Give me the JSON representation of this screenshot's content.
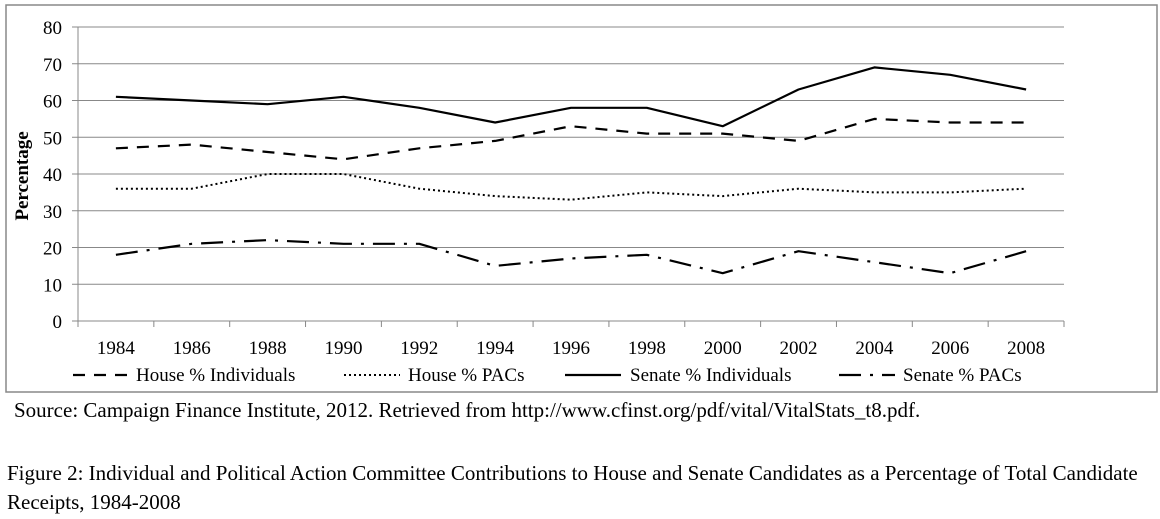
{
  "chart_data": {
    "type": "line",
    "title": "",
    "xlabel": "",
    "ylabel": "Percentage",
    "x": [
      "1984",
      "1986",
      "1988",
      "1990",
      "1992",
      "1994",
      "1996",
      "1998",
      "2000",
      "2002",
      "2004",
      "2006",
      "2008"
    ],
    "ylim": [
      0,
      80
    ],
    "yticks": [
      0,
      10,
      20,
      30,
      40,
      50,
      60,
      70,
      80
    ],
    "grid": true,
    "legend": "bottom",
    "series": [
      {
        "name": "House % Individuals",
        "style": "dashed",
        "color": "#000000",
        "values": [
          47,
          48,
          46,
          44,
          47,
          49,
          53,
          51,
          51,
          49,
          55,
          54,
          54
        ]
      },
      {
        "name": "House % PACs",
        "style": "dotted",
        "color": "#000000",
        "values": [
          36,
          36,
          40,
          40,
          36,
          34,
          33,
          35,
          34,
          36,
          35,
          35,
          36
        ]
      },
      {
        "name": "Senate % Individuals",
        "style": "solid",
        "color": "#000000",
        "values": [
          61,
          60,
          59,
          61,
          58,
          54,
          58,
          58,
          53,
          63,
          69,
          67,
          63
        ]
      },
      {
        "name": "Senate % PACs",
        "style": "dashdot",
        "color": "#000000",
        "values": [
          18,
          21,
          22,
          21,
          21,
          15,
          17,
          18,
          13,
          19,
          16,
          13,
          19
        ]
      }
    ]
  },
  "source": "Source:  Campaign Finance Institute, 2012.  Retrieved from http://www.cfinst.org/pdf/vital/VitalStats_t8.pdf.",
  "caption": "Figure 2:  Individual and Political Action Committee Contributions to House and Senate Candidates as a Percentage of Total Candidate Receipts, 1984-2008"
}
